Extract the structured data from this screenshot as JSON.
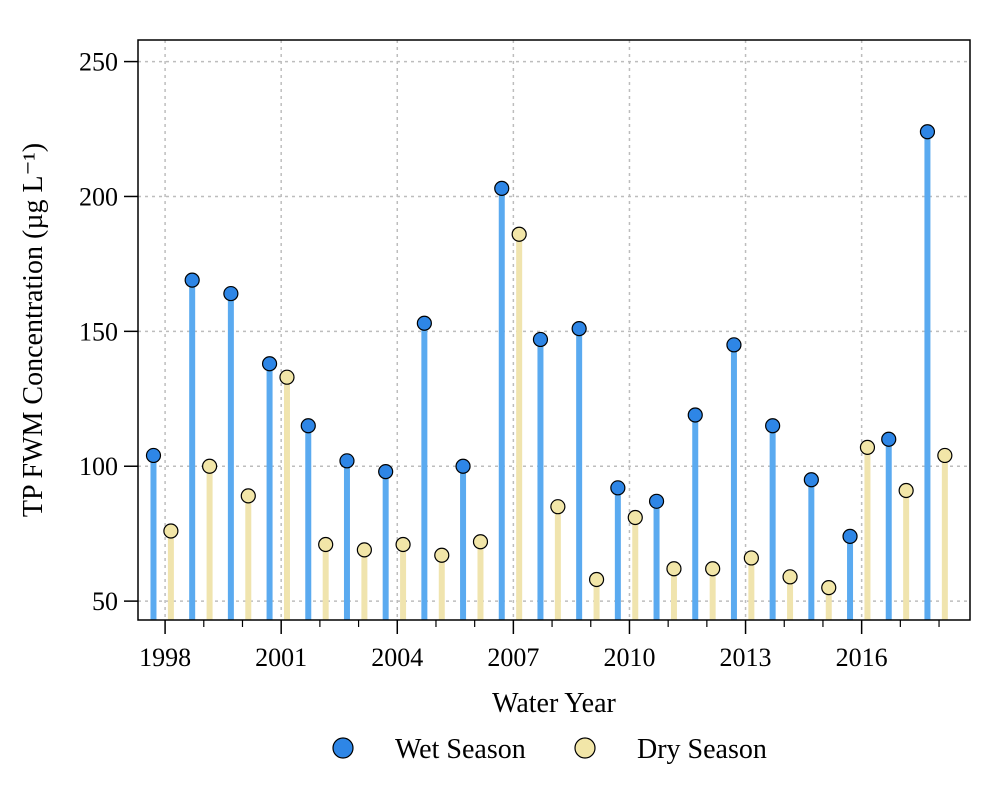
{
  "chart_data": {
    "type": "scatter",
    "xlabel": "Water Year",
    "ylabel": "TP FWM Concentration (µg L⁻¹)",
    "ylim": [
      43,
      258
    ],
    "xlim": [
      1997.3,
      2018.8
    ],
    "yticks": [
      50,
      100,
      150,
      200,
      250
    ],
    "xticks": [
      1998,
      2001,
      2004,
      2007,
      2010,
      2013,
      2016
    ],
    "grid": true,
    "legend_position": "bottom",
    "colors": {
      "wet_line": "#5aaaf0",
      "wet_point": "#2e86e6",
      "dry_line": "#f0e4ae",
      "dry_point": "#f2e6a8"
    },
    "series": [
      {
        "name": "Wet Season",
        "x": [
          1998,
          1999,
          2000,
          2001,
          2002,
          2003,
          2004,
          2005,
          2006,
          2007,
          2008,
          2009,
          2010,
          2011,
          2012,
          2013,
          2014,
          2015,
          2016,
          2017,
          2018
        ],
        "values": [
          104,
          169,
          164,
          138,
          115,
          102,
          98,
          153,
          100,
          203,
          147,
          151,
          92,
          87,
          119,
          145,
          115,
          95,
          74,
          110,
          224
        ]
      },
      {
        "name": "Dry Season",
        "x": [
          1998,
          1999,
          2000,
          2001,
          2002,
          2003,
          2004,
          2005,
          2006,
          2007,
          2008,
          2009,
          2010,
          2011,
          2012,
          2013,
          2014,
          2015,
          2016,
          2017,
          2018
        ],
        "values": [
          76,
          100,
          89,
          133,
          71,
          69,
          71,
          67,
          72,
          186,
          85,
          58,
          81,
          62,
          62,
          66,
          59,
          55,
          107,
          91,
          104
        ]
      }
    ]
  }
}
